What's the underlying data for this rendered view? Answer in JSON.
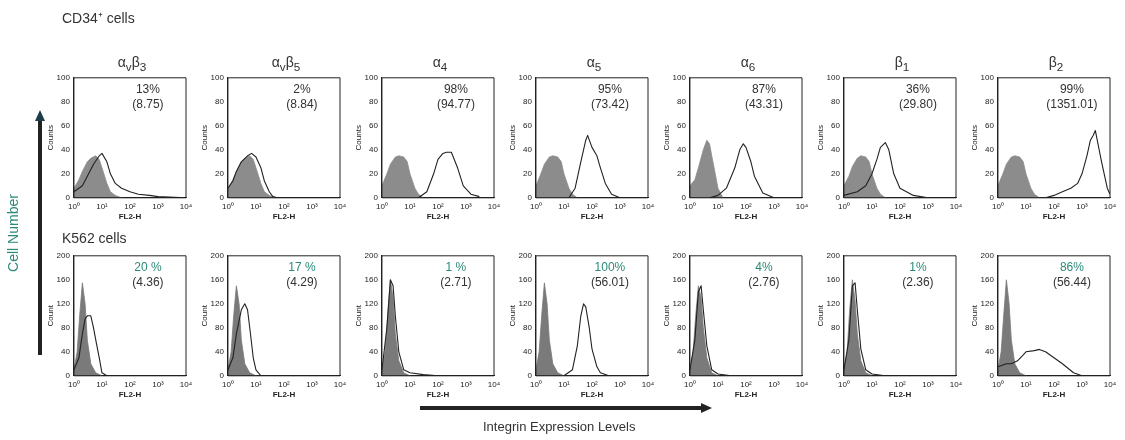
{
  "chart_data": [
    {
      "type": "line",
      "title": "α$_{v}$β$_{3}$",
      "xlabel": "FL2-H",
      "ylabel": "Counts",
      "log": "x",
      "grid": false,
      "legend": false,
      "marker": "none",
      "xlim": [
        1,
        10000
      ],
      "xticks": [
        {
          "value": 1,
          "label": "10⁰"
        },
        {
          "value": 10,
          "label": "10¹"
        },
        {
          "value": 100,
          "label": "10²"
        },
        {
          "value": 1000,
          "label": "10³"
        },
        {
          "value": 10000,
          "label": "10⁴"
        }
      ],
      "ylim": [
        0,
        100
      ],
      "yticks": [
        0,
        20,
        40,
        60,
        80,
        100
      ],
      "annotations": [
        "13%",
        "(8.75)"
      ],
      "series": [
        {
          "type": "area",
          "color": "#8c8c8c",
          "x": [
            1,
            1.5,
            2,
            3,
            4,
            6,
            8,
            10,
            15,
            20,
            30,
            50
          ],
          "values": [
            8,
            15,
            22,
            30,
            33,
            35,
            32,
            25,
            12,
            5,
            2,
            0
          ]
        },
        {
          "type": "line",
          "color": "#222222",
          "x": [
            1,
            2,
            3,
            5,
            8,
            10,
            15,
            20,
            30,
            50,
            100,
            200,
            500,
            1000,
            10000
          ],
          "values": [
            5,
            10,
            18,
            28,
            35,
            37,
            30,
            20,
            12,
            8,
            5,
            3,
            2,
            1,
            0
          ]
        }
      ]
    },
    {
      "type": "line",
      "title": "α$_{v}$β$_{5}$",
      "xlabel": "FL2-H",
      "ylabel": "Counts",
      "log": "x",
      "grid": false,
      "legend": false,
      "marker": "none",
      "xlim": [
        1,
        10000
      ],
      "xticks": [
        {
          "value": 1,
          "label": "10⁰"
        },
        {
          "value": 10,
          "label": "10¹"
        },
        {
          "value": 100,
          "label": "10²"
        },
        {
          "value": 1000,
          "label": "10³"
        },
        {
          "value": 10000,
          "label": "10⁴"
        }
      ],
      "ylim": [
        0,
        100
      ],
      "yticks": [
        0,
        20,
        40,
        60,
        80,
        100
      ],
      "annotations": [
        "2%",
        "(8.84)"
      ],
      "series": [
        {
          "type": "area",
          "color": "#8c8c8c",
          "x": [
            1,
            1.5,
            2,
            3,
            4,
            6,
            8,
            10,
            15,
            20,
            30,
            50
          ],
          "values": [
            8,
            15,
            22,
            30,
            33,
            35,
            32,
            25,
            12,
            5,
            2,
            0
          ]
        },
        {
          "type": "line",
          "color": "#222222",
          "x": [
            1,
            1.5,
            2,
            3,
            5,
            7,
            10,
            15,
            20,
            30,
            40,
            60
          ],
          "values": [
            8,
            14,
            22,
            30,
            35,
            37,
            34,
            25,
            14,
            5,
            1,
            0
          ]
        }
      ]
    },
    {
      "type": "line",
      "title": "α$_{4}$",
      "xlabel": "FL2-H",
      "ylabel": "Counts",
      "log": "x",
      "grid": false,
      "legend": false,
      "marker": "none",
      "xlim": [
        1,
        10000
      ],
      "xticks": [
        {
          "value": 1,
          "label": "10⁰"
        },
        {
          "value": 10,
          "label": "10¹"
        },
        {
          "value": 100,
          "label": "10²"
        },
        {
          "value": 1000,
          "label": "10³"
        },
        {
          "value": 10000,
          "label": "10⁴"
        }
      ],
      "ylim": [
        0,
        100
      ],
      "yticks": [
        0,
        20,
        40,
        60,
        80,
        100
      ],
      "annotations": [
        "98%",
        "(94.77)"
      ],
      "series": [
        {
          "type": "area",
          "color": "#8c8c8c",
          "x": [
            1,
            1.5,
            2,
            3,
            4,
            6,
            8,
            10,
            15,
            20,
            30
          ],
          "values": [
            10,
            20,
            28,
            34,
            35,
            34,
            30,
            20,
            8,
            3,
            0
          ]
        },
        {
          "type": "line",
          "color": "#222222",
          "x": [
            20,
            40,
            70,
            100,
            150,
            200,
            300,
            500,
            800,
            1500,
            3000
          ],
          "values": [
            0,
            5,
            20,
            32,
            37,
            38,
            38,
            25,
            10,
            3,
            1
          ]
        }
      ]
    },
    {
      "type": "line",
      "title": "α$_{5}$",
      "xlabel": "FL2-H",
      "ylabel": "Counts",
      "log": "x",
      "grid": false,
      "legend": false,
      "marker": "none",
      "xlim": [
        1,
        10000
      ],
      "xticks": [
        {
          "value": 1,
          "label": "10⁰"
        },
        {
          "value": 10,
          "label": "10¹"
        },
        {
          "value": 100,
          "label": "10²"
        },
        {
          "value": 1000,
          "label": "10³"
        },
        {
          "value": 10000,
          "label": "10⁴"
        }
      ],
      "ylim": [
        0,
        100
      ],
      "yticks": [
        0,
        20,
        40,
        60,
        80,
        100
      ],
      "annotations": [
        "95%",
        "(73.42)"
      ],
      "series": [
        {
          "type": "area",
          "color": "#8c8c8c",
          "x": [
            1,
            1.5,
            2,
            3,
            4,
            6,
            8,
            10,
            15,
            20,
            30
          ],
          "values": [
            10,
            20,
            28,
            34,
            35,
            34,
            30,
            20,
            8,
            3,
            0
          ]
        },
        {
          "type": "line",
          "color": "#222222",
          "x": [
            15,
            25,
            40,
            60,
            70,
            100,
            150,
            200,
            300,
            500,
            1000
          ],
          "values": [
            0,
            8,
            30,
            48,
            52,
            42,
            35,
            25,
            12,
            3,
            0
          ]
        }
      ]
    },
    {
      "type": "line",
      "title": "α$_{6}$",
      "xlabel": "FL2-H",
      "ylabel": "Counts",
      "log": "x",
      "grid": false,
      "legend": false,
      "marker": "none",
      "xlim": [
        1,
        10000
      ],
      "xticks": [
        {
          "value": 1,
          "label": "10⁰"
        },
        {
          "value": 10,
          "label": "10¹"
        },
        {
          "value": 100,
          "label": "10²"
        },
        {
          "value": 1000,
          "label": "10³"
        },
        {
          "value": 10000,
          "label": "10⁴"
        }
      ],
      "ylim": [
        0,
        100
      ],
      "yticks": [
        0,
        20,
        40,
        60,
        80,
        100
      ],
      "annotations": [
        "87%",
        "(43.31)"
      ],
      "series": [
        {
          "type": "area",
          "color": "#8c8c8c",
          "x": [
            1,
            1.5,
            2,
            3,
            4,
            5,
            6,
            8,
            10,
            15
          ],
          "values": [
            10,
            15,
            25,
            40,
            48,
            45,
            35,
            20,
            8,
            0
          ]
        },
        {
          "type": "line",
          "color": "#222222",
          "x": [
            5,
            10,
            20,
            40,
            60,
            80,
            100,
            150,
            200,
            400,
            1000
          ],
          "values": [
            0,
            2,
            8,
            25,
            40,
            45,
            42,
            30,
            18,
            4,
            0
          ]
        }
      ]
    },
    {
      "type": "line",
      "title": "β$_{1}$",
      "xlabel": "FL2-H",
      "ylabel": "Counts",
      "log": "x",
      "grid": false,
      "legend": false,
      "marker": "none",
      "xlim": [
        1,
        10000
      ],
      "xticks": [
        {
          "value": 1,
          "label": "10⁰"
        },
        {
          "value": 10,
          "label": "10¹"
        },
        {
          "value": 100,
          "label": "10²"
        },
        {
          "value": 1000,
          "label": "10³"
        },
        {
          "value": 10000,
          "label": "10⁴"
        }
      ],
      "ylim": [
        0,
        100
      ],
      "yticks": [
        0,
        20,
        40,
        60,
        80,
        100
      ],
      "annotations": [
        "36%",
        "(29.80)"
      ],
      "series": [
        {
          "type": "area",
          "color": "#8c8c8c",
          "x": [
            1,
            1.5,
            2,
            3,
            4,
            6,
            8,
            10,
            15,
            20,
            30
          ],
          "values": [
            10,
            18,
            26,
            33,
            35,
            34,
            30,
            20,
            8,
            3,
            0
          ]
        },
        {
          "type": "line",
          "color": "#222222",
          "x": [
            1,
            3,
            6,
            10,
            15,
            20,
            30,
            40,
            60,
            100,
            300,
            1000
          ],
          "values": [
            2,
            5,
            10,
            20,
            32,
            42,
            46,
            40,
            20,
            8,
            2,
            0
          ]
        }
      ]
    },
    {
      "type": "line",
      "title": "β$_{2}$",
      "xlabel": "FL2-H",
      "ylabel": "Counts",
      "log": "x",
      "grid": false,
      "legend": false,
      "marker": "none",
      "xlim": [
        1,
        10000
      ],
      "xticks": [
        {
          "value": 1,
          "label": "10⁰"
        },
        {
          "value": 10,
          "label": "10¹"
        },
        {
          "value": 100,
          "label": "10²"
        },
        {
          "value": 1000,
          "label": "10³"
        },
        {
          "value": 10000,
          "label": "10⁴"
        }
      ],
      "ylim": [
        0,
        100
      ],
      "yticks": [
        0,
        20,
        40,
        60,
        80,
        100
      ],
      "annotations": [
        "99%",
        "(1351.01)"
      ],
      "series": [
        {
          "type": "area",
          "color": "#8c8c8c",
          "x": [
            1,
            1.5,
            2,
            3,
            4,
            6,
            8,
            10,
            15,
            20,
            30
          ],
          "values": [
            10,
            20,
            28,
            34,
            35,
            34,
            30,
            20,
            8,
            3,
            0
          ]
        },
        {
          "type": "line",
          "color": "#222222",
          "x": [
            50,
            100,
            200,
            400,
            700,
            1000,
            1500,
            2000,
            2500,
            3000,
            5000,
            8000,
            10000
          ],
          "values": [
            0,
            2,
            5,
            8,
            12,
            20,
            35,
            48,
            52,
            56,
            30,
            8,
            3
          ]
        }
      ]
    },
    {
      "type": "line",
      "xlabel": "FL2-H",
      "ylabel": "Count",
      "log": "x",
      "grid": false,
      "legend": false,
      "marker": "none",
      "xlim": [
        1,
        10000
      ],
      "xticks": [
        {
          "value": 1,
          "label": "10⁰"
        },
        {
          "value": 10,
          "label": "10¹"
        },
        {
          "value": 100,
          "label": "10²"
        },
        {
          "value": 1000,
          "label": "10³"
        },
        {
          "value": 10000,
          "label": "10⁴"
        }
      ],
      "ylim": [
        0,
        200
      ],
      "yticks": [
        0,
        40,
        80,
        120,
        160,
        200
      ],
      "annotations": [
        "20 %",
        "(4.36)"
      ],
      "series": [
        {
          "type": "area",
          "color": "#7a7a7a",
          "x": [
            1,
            1.3,
            1.6,
            2,
            2.5,
            3,
            4,
            6,
            10
          ],
          "values": [
            10,
            40,
            100,
            155,
            120,
            60,
            20,
            5,
            0
          ]
        },
        {
          "type": "line",
          "color": "#222222",
          "x": [
            1,
            1.5,
            2,
            2.5,
            3,
            4,
            5,
            6,
            8,
            10,
            15
          ],
          "values": [
            10,
            30,
            70,
            95,
            100,
            100,
            80,
            60,
            30,
            5,
            0
          ]
        }
      ]
    },
    {
      "type": "line",
      "xlabel": "FL2-H",
      "ylabel": "Count",
      "log": "x",
      "grid": false,
      "legend": false,
      "marker": "none",
      "xlim": [
        1,
        10000
      ],
      "xticks": [
        {
          "value": 1,
          "label": "10⁰"
        },
        {
          "value": 10,
          "label": "10¹"
        },
        {
          "value": 100,
          "label": "10²"
        },
        {
          "value": 1000,
          "label": "10³"
        },
        {
          "value": 10000,
          "label": "10⁴"
        }
      ],
      "ylim": [
        0,
        200
      ],
      "yticks": [
        0,
        40,
        80,
        120,
        160,
        200
      ],
      "annotations": [
        "17 %",
        "(4.29)"
      ],
      "series": [
        {
          "type": "area",
          "color": "#7a7a7a",
          "x": [
            1,
            1.3,
            1.6,
            2,
            2.5,
            3,
            4,
            6,
            10
          ],
          "values": [
            10,
            40,
            100,
            150,
            120,
            60,
            20,
            5,
            0
          ]
        },
        {
          "type": "line",
          "color": "#222222",
          "x": [
            1,
            1.5,
            2,
            3,
            4,
            5,
            6,
            8,
            10,
            15
          ],
          "values": [
            10,
            30,
            70,
            110,
            120,
            110,
            80,
            30,
            10,
            0
          ]
        }
      ]
    },
    {
      "type": "line",
      "xlabel": "FL2-H",
      "ylabel": "Count",
      "log": "x",
      "grid": false,
      "legend": false,
      "marker": "none",
      "xlim": [
        1,
        10000
      ],
      "xticks": [
        {
          "value": 1,
          "label": "10⁰"
        },
        {
          "value": 10,
          "label": "10¹"
        },
        {
          "value": 100,
          "label": "10²"
        },
        {
          "value": 1000,
          "label": "10³"
        },
        {
          "value": 10000,
          "label": "10⁴"
        }
      ],
      "ylim": [
        0,
        200
      ],
      "yticks": [
        0,
        40,
        80,
        120,
        160,
        200
      ],
      "annotations": [
        "1 %",
        "(2.71)"
      ],
      "series": [
        {
          "type": "area",
          "color": "#7a7a7a",
          "x": [
            1,
            1.3,
            1.6,
            2,
            2.5,
            3,
            4,
            6,
            10
          ],
          "values": [
            10,
            40,
            100,
            160,
            130,
            70,
            25,
            5,
            0
          ]
        },
        {
          "type": "line",
          "color": "#222222",
          "x": [
            1,
            1.5,
            2,
            2.5,
            3,
            4,
            6,
            10,
            30,
            100
          ],
          "values": [
            10,
            80,
            160,
            150,
            100,
            40,
            10,
            5,
            2,
            0
          ]
        }
      ]
    },
    {
      "type": "line",
      "xlabel": "FL2-H",
      "ylabel": "Count",
      "log": "x",
      "grid": false,
      "legend": false,
      "marker": "none",
      "xlim": [
        1,
        10000
      ],
      "xticks": [
        {
          "value": 1,
          "label": "10⁰"
        },
        {
          "value": 10,
          "label": "10¹"
        },
        {
          "value": 100,
          "label": "10²"
        },
        {
          "value": 1000,
          "label": "10³"
        },
        {
          "value": 10000,
          "label": "10⁴"
        }
      ],
      "ylim": [
        0,
        200
      ],
      "yticks": [
        0,
        40,
        80,
        120,
        160,
        200
      ],
      "annotations": [
        "100%",
        "(56.01)"
      ],
      "series": [
        {
          "type": "area",
          "color": "#7a7a7a",
          "x": [
            1,
            1.3,
            1.6,
            2,
            2.5,
            3,
            4,
            6,
            10
          ],
          "values": [
            10,
            40,
            100,
            155,
            120,
            60,
            20,
            5,
            0
          ]
        },
        {
          "type": "line",
          "color": "#222222",
          "x": [
            10,
            20,
            30,
            40,
            50,
            60,
            80,
            100,
            150,
            200,
            400
          ],
          "values": [
            0,
            10,
            50,
            100,
            120,
            115,
            80,
            45,
            15,
            5,
            0
          ]
        }
      ]
    },
    {
      "type": "line",
      "xlabel": "FL2-H",
      "ylabel": "Count",
      "log": "x",
      "grid": false,
      "legend": false,
      "marker": "none",
      "xlim": [
        1,
        10000
      ],
      "xticks": [
        {
          "value": 1,
          "label": "10⁰"
        },
        {
          "value": 10,
          "label": "10¹"
        },
        {
          "value": 100,
          "label": "10²"
        },
        {
          "value": 1000,
          "label": "10³"
        },
        {
          "value": 10000,
          "label": "10⁴"
        }
      ],
      "ylim": [
        0,
        200
      ],
      "yticks": [
        0,
        40,
        80,
        120,
        160,
        200
      ],
      "annotations": [
        "4%",
        "(2.76)"
      ],
      "series": [
        {
          "type": "area",
          "color": "#7a7a7a",
          "x": [
            1,
            1.3,
            1.6,
            2,
            2.5,
            3,
            4,
            6,
            10
          ],
          "values": [
            10,
            40,
            100,
            150,
            130,
            80,
            30,
            5,
            0
          ]
        },
        {
          "type": "line",
          "color": "#222222",
          "x": [
            1,
            1.5,
            2,
            2.5,
            3,
            4,
            6,
            10,
            30
          ],
          "values": [
            10,
            60,
            140,
            150,
            110,
            50,
            10,
            3,
            0
          ]
        }
      ]
    },
    {
      "type": "line",
      "xlabel": "FL2-H",
      "ylabel": "Count",
      "log": "x",
      "grid": false,
      "legend": false,
      "marker": "none",
      "xlim": [
        1,
        10000
      ],
      "xticks": [
        {
          "value": 1,
          "label": "10⁰"
        },
        {
          "value": 10,
          "label": "10¹"
        },
        {
          "value": 100,
          "label": "10²"
        },
        {
          "value": 1000,
          "label": "10³"
        },
        {
          "value": 10000,
          "label": "10⁴"
        }
      ],
      "ylim": [
        0,
        200
      ],
      "yticks": [
        0,
        40,
        80,
        120,
        160,
        200
      ],
      "annotations": [
        "1%",
        "(2.36)"
      ],
      "series": [
        {
          "type": "area",
          "color": "#7a7a7a",
          "x": [
            1,
            1.3,
            1.6,
            2,
            2.5,
            3,
            4,
            6,
            10
          ],
          "values": [
            10,
            40,
            110,
            160,
            125,
            70,
            25,
            5,
            0
          ]
        },
        {
          "type": "line",
          "color": "#222222",
          "x": [
            1,
            1.5,
            2,
            2.5,
            3,
            4,
            6,
            10,
            30
          ],
          "values": [
            10,
            60,
            150,
            155,
            110,
            45,
            10,
            3,
            0
          ]
        }
      ]
    },
    {
      "type": "line",
      "xlabel": "FL2-H",
      "ylabel": "Count",
      "log": "x",
      "grid": false,
      "legend": false,
      "marker": "none",
      "xlim": [
        1,
        10000
      ],
      "xticks": [
        {
          "value": 1,
          "label": "10⁰"
        },
        {
          "value": 10,
          "label": "10¹"
        },
        {
          "value": 100,
          "label": "10²"
        },
        {
          "value": 1000,
          "label": "10³"
        },
        {
          "value": 10000,
          "label": "10⁴"
        }
      ],
      "ylim": [
        0,
        200
      ],
      "yticks": [
        0,
        40,
        80,
        120,
        160,
        200
      ],
      "annotations": [
        "86%",
        "(56.44)"
      ],
      "series": [
        {
          "type": "area",
          "color": "#7a7a7a",
          "x": [
            1,
            1.3,
            1.6,
            2,
            2.5,
            3,
            4,
            6,
            10
          ],
          "values": [
            10,
            40,
            100,
            160,
            120,
            60,
            20,
            5,
            0
          ]
        },
        {
          "type": "line",
          "color": "#222222",
          "x": [
            1,
            2,
            3,
            5,
            8,
            10,
            20,
            30,
            50,
            100,
            200,
            500,
            1000
          ],
          "values": [
            15,
            20,
            20,
            25,
            35,
            40,
            42,
            44,
            40,
            30,
            20,
            5,
            0
          ]
        }
      ]
    },
    {
      "type": "other",
      "annotations": [
        "CD34⁺ cells",
        "K562 cells",
        "Cell Number",
        "Integrin Expression Levels"
      ]
    }
  ]
}
